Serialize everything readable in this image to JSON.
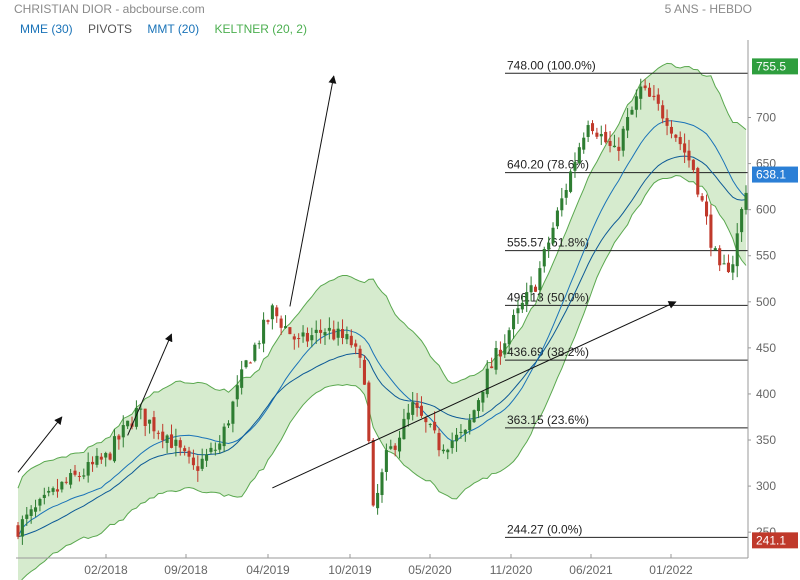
{
  "header": {
    "title": "CHRISTIAN DIOR - abcbourse.com",
    "period": "5 ANS - HEBDO"
  },
  "legend": [
    {
      "label": "MME (30)",
      "color": "#1a73b8"
    },
    {
      "label": "PIVOTS",
      "color": "#555555"
    },
    {
      "label": "MMT (20)",
      "color": "#1a73b8"
    },
    {
      "label": "KELTNER (20, 2)",
      "color": "#4caf50"
    }
  ],
  "chart_data": {
    "type": "candlestick",
    "title": "CHRISTIAN DIOR - abcbourse.com",
    "subtitle": "5 ANS - HEBDO",
    "y_ticks": [
      250,
      300,
      350,
      400,
      450,
      500,
      550,
      600,
      650,
      700
    ],
    "ylim": [
      240,
      770
    ],
    "x_ticks": [
      "02/2018",
      "09/2018",
      "04/2019",
      "10/2019",
      "05/2020",
      "11/2020",
      "06/2021",
      "01/2022"
    ],
    "fibonacci": [
      {
        "label": "748.00 (100.0%)",
        "value": 748.0
      },
      {
        "label": "640.20 (78.6%)",
        "value": 640.2
      },
      {
        "label": "555.57 (61.8%)",
        "value": 555.57
      },
      {
        "label": "496.13 (50.0%)",
        "value": 496.13
      },
      {
        "label": "436.69 (38.2%)",
        "value": 436.69
      },
      {
        "label": "363.15 (23.6%)",
        "value": 363.15
      },
      {
        "label": "244.27 (0.0%)",
        "value": 244.27
      }
    ],
    "price_tags": [
      {
        "label": "755.5",
        "value": 755.5,
        "color": "#2e9e3e"
      },
      {
        "label": "638.1",
        "value": 638.1,
        "color": "#2b7fd6"
      },
      {
        "label": "241.1",
        "value": 241.1,
        "color": "#c0392b"
      }
    ],
    "price_path": [
      [
        0,
        255
      ],
      [
        10,
        300
      ],
      [
        20,
        330
      ],
      [
        27,
        380
      ],
      [
        34,
        355
      ],
      [
        40,
        318
      ],
      [
        46,
        345
      ],
      [
        52,
        432
      ],
      [
        58,
        490
      ],
      [
        64,
        455
      ],
      [
        70,
        470
      ],
      [
        76,
        455
      ],
      [
        79,
        420
      ],
      [
        81,
        270
      ],
      [
        84,
        330
      ],
      [
        90,
        385
      ],
      [
        96,
        345
      ],
      [
        102,
        355
      ],
      [
        106,
        410
      ],
      [
        112,
        470
      ],
      [
        118,
        520
      ],
      [
        124,
        610
      ],
      [
        130,
        700
      ],
      [
        136,
        660
      ],
      [
        142,
        730
      ],
      [
        148,
        700
      ],
      [
        154,
        645
      ],
      [
        160,
        530
      ],
      [
        163,
        545
      ],
      [
        166,
        625
      ]
    ],
    "trend_arrows": [
      {
        "from": [
          0,
          315
        ],
        "to": [
          10,
          375
        ]
      },
      {
        "from": [
          25,
          355
        ],
        "to": [
          35,
          465
        ]
      },
      {
        "from": [
          62,
          495
        ],
        "to": [
          72,
          745
        ]
      },
      {
        "from": [
          58,
          298
        ],
        "to": [
          150,
          500
        ]
      }
    ],
    "series": [
      {
        "name": "KELTNER (20, 2)"
      },
      {
        "name": "MMT (20)"
      },
      {
        "name": "MME (30)"
      }
    ],
    "grid": false
  }
}
